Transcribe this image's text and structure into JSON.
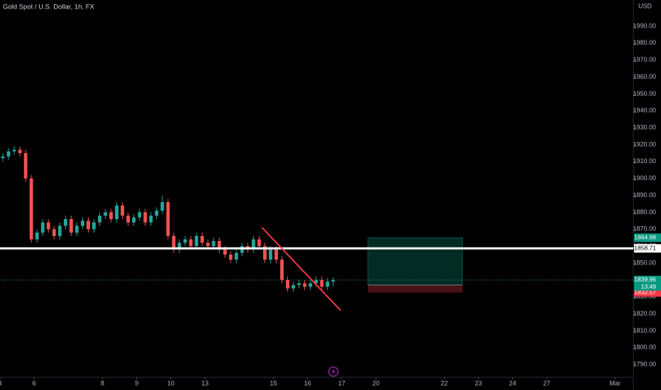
{
  "header": {
    "title": "Gold Spot / U.S. Dollar, 1h, FX",
    "currency": "USD"
  },
  "chart_data": {
    "type": "candlestick",
    "up_color": "#26a69a",
    "down_color": "#ef5350",
    "open": [
      1912,
      1913,
      1916,
      1917,
      1915,
      1900,
      1864,
      1868,
      1874,
      1870,
      1866,
      1872,
      1876,
      1868,
      1872,
      1875,
      1870,
      1874,
      1878,
      1880,
      1876,
      1884,
      1878,
      1874,
      1877,
      1880,
      1874,
      1878,
      1881,
      1886,
      1866,
      1858,
      1862,
      1864,
      1860,
      1866,
      1862,
      1860,
      1863,
      1858,
      1855,
      1852,
      1856,
      1860,
      1858,
      1864,
      1860,
      1852,
      1858,
      1852,
      1840,
      1835,
      1837,
      1838,
      1836,
      1838,
      1840,
      1836,
      1839
    ],
    "high": [
      1915,
      1918,
      1919,
      1919,
      1917,
      1902,
      1870,
      1876,
      1876,
      1872,
      1874,
      1878,
      1878,
      1874,
      1877,
      1877,
      1876,
      1880,
      1882,
      1882,
      1886,
      1886,
      1880,
      1879,
      1882,
      1882,
      1880,
      1883,
      1890,
      1888,
      1868,
      1864,
      1866,
      1866,
      1868,
      1868,
      1864,
      1865,
      1865,
      1860,
      1857,
      1858,
      1862,
      1862,
      1866,
      1866,
      1862,
      1860,
      1860,
      1854,
      1842,
      1839,
      1840,
      1840,
      1840,
      1842,
      1842,
      1841,
      1841.5
    ],
    "low": [
      1910,
      1911,
      1914,
      1913,
      1898,
      1862,
      1862,
      1866,
      1868,
      1864,
      1864,
      1870,
      1866,
      1866,
      1870,
      1868,
      1868,
      1872,
      1876,
      1874,
      1874,
      1876,
      1872,
      1872,
      1875,
      1872,
      1872,
      1876,
      1879,
      1864,
      1856,
      1856,
      1860,
      1858,
      1858,
      1860,
      1858,
      1858,
      1856,
      1853,
      1850,
      1850,
      1854,
      1856,
      1856,
      1858,
      1850,
      1850,
      1850,
      1838,
      1833,
      1833,
      1835,
      1834,
      1834,
      1836,
      1834,
      1834,
      1836
    ],
    "close": [
      1913,
      1916,
      1917,
      1915,
      1900,
      1864,
      1868,
      1874,
      1870,
      1866,
      1872,
      1876,
      1868,
      1872,
      1875,
      1870,
      1874,
      1878,
      1880,
      1876,
      1884,
      1878,
      1874,
      1877,
      1880,
      1874,
      1878,
      1881,
      1886,
      1866,
      1858,
      1862,
      1864,
      1860,
      1866,
      1862,
      1860,
      1863,
      1858,
      1855,
      1852,
      1856,
      1860,
      1858,
      1864,
      1860,
      1852,
      1858,
      1852,
      1840,
      1835,
      1837,
      1838,
      1836,
      1838,
      1840,
      1836,
      1839,
      1839.96
    ],
    "ylim": [
      1782.5,
      2005.5
    ],
    "yticks": [
      {
        "value": 1790,
        "label": "1790.00"
      },
      {
        "value": 1800,
        "label": "1800.00"
      },
      {
        "value": 1810,
        "label": "1810.00"
      },
      {
        "value": 1820,
        "label": "1820.00"
      },
      {
        "value": 1830,
        "label": "1830.00"
      },
      {
        "value": 1840,
        "label": "1840.00"
      },
      {
        "value": 1850,
        "label": "1850.00"
      },
      {
        "value": 1860,
        "label": "1860.00"
      },
      {
        "value": 1870,
        "label": "1870.00"
      },
      {
        "value": 1880,
        "label": "1880.00"
      },
      {
        "value": 1890,
        "label": "1890.00"
      },
      {
        "value": 1900,
        "label": "1900.00"
      },
      {
        "value": 1910,
        "label": "1910.00"
      },
      {
        "value": 1920,
        "label": "1920.00"
      },
      {
        "value": 1930,
        "label": "1930.00"
      },
      {
        "value": 1940,
        "label": "1940.00"
      },
      {
        "value": 1950,
        "label": "1950.00"
      },
      {
        "value": 1960,
        "label": "1960.00"
      },
      {
        "value": 1970,
        "label": "1970.00"
      },
      {
        "value": 1980,
        "label": "1980.00"
      },
      {
        "value": 1990,
        "label": "1990.00"
      }
    ],
    "xlim": [
      0,
      111.2
    ],
    "xticks": [
      {
        "value": 0,
        "label": "3"
      },
      {
        "value": 6,
        "label": "6"
      },
      {
        "value": 18,
        "label": "8"
      },
      {
        "value": 24,
        "label": "9"
      },
      {
        "value": 30,
        "label": "10"
      },
      {
        "value": 36,
        "label": "13"
      },
      {
        "value": 48,
        "label": "15"
      },
      {
        "value": 54,
        "label": "16"
      },
      {
        "value": 60,
        "label": "17"
      },
      {
        "value": 66,
        "label": "20"
      },
      {
        "value": 78,
        "label": "22"
      },
      {
        "value": 84,
        "label": "23"
      },
      {
        "value": 90,
        "label": "24"
      },
      {
        "value": 96,
        "label": "27"
      },
      {
        "value": 108,
        "label": "Mar"
      }
    ],
    "hline": {
      "value": 1858.71,
      "color": "#ffffff"
    },
    "trendline": {
      "x": [
        46,
        59.8
      ],
      "y": [
        1871,
        1822
      ],
      "color": "#f23645"
    },
    "position": {
      "x": [
        64.6,
        81.2
      ],
      "target": 1864.98,
      "entry": 1837.01,
      "stop": 1832.57
    },
    "last_price": 1839.96,
    "countdown": "13:49"
  }
}
